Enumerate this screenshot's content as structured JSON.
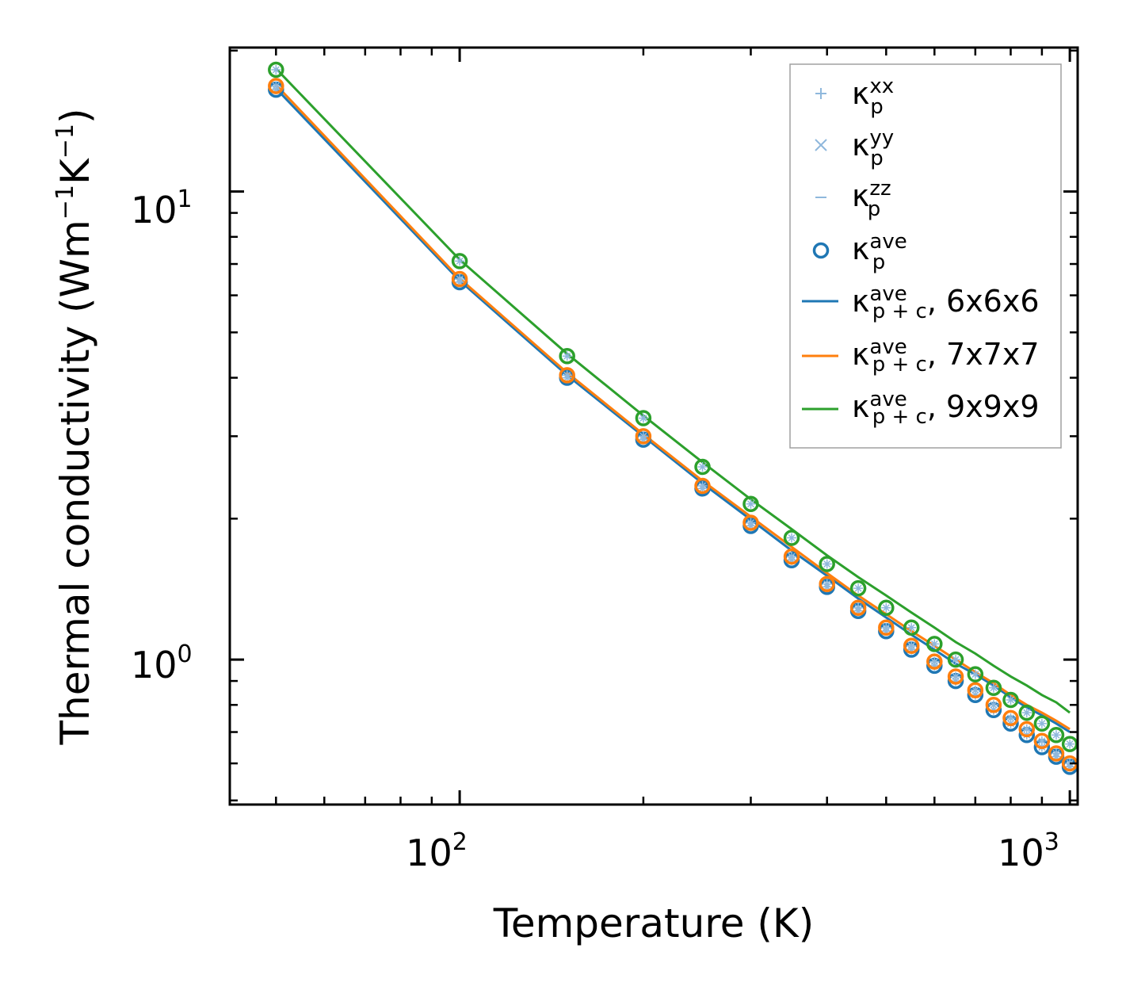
{
  "chart_data": {
    "type": "line",
    "title": "",
    "xlabel": "Temperature (K)",
    "ylabel": "Thermal conductivity (Wm",
    "ylabel_sup1": "−1",
    "ylabel_mid": "K",
    "ylabel_sup2": "−1",
    "ylabel_end": ")",
    "xscale": "log",
    "yscale": "log",
    "xlim": [
      42,
      1030
    ],
    "ylim": [
      0.49,
      20.3
    ],
    "x_ticks": [
      {
        "base": "10",
        "exp": "2",
        "value": 100
      },
      {
        "base": "10",
        "exp": "3",
        "value": 1000
      }
    ],
    "y_ticks": [
      {
        "base": "10",
        "exp": "0",
        "value": 1
      },
      {
        "base": "10",
        "exp": "1",
        "value": 10
      }
    ],
    "legend_position": "upper right",
    "legend": [
      {
        "id": "kxx",
        "sym": "κ",
        "sup": "xx",
        "sub": "p",
        "suffix": "",
        "marker": "plus",
        "color": "#8fb8dc"
      },
      {
        "id": "kyy",
        "sym": "κ",
        "sup": "yy",
        "sub": "p",
        "suffix": "",
        "marker": "x",
        "color": "#8fb8dc"
      },
      {
        "id": "kzz",
        "sym": "κ",
        "sup": "zz",
        "sub": "p",
        "suffix": "",
        "marker": "dash",
        "color": "#8fb8dc"
      },
      {
        "id": "kave",
        "sym": "κ",
        "sup": "ave",
        "sub": "p",
        "suffix": "",
        "marker": "circle",
        "color": "#1f77b4"
      },
      {
        "id": "l6",
        "sym": "κ",
        "sup": "ave",
        "sub": "p + c",
        "suffix": ", 6x6x6",
        "marker": "line",
        "color": "#1f77b4"
      },
      {
        "id": "l7",
        "sym": "κ",
        "sup": "ave",
        "sub": "p + c",
        "suffix": ", 7x7x7",
        "marker": "line",
        "color": "#ff7f0e"
      },
      {
        "id": "l9",
        "sym": "κ",
        "sup": "ave",
        "sub": "p + c",
        "suffix": ", 9x9x9",
        "marker": "line",
        "color": "#2ca02c"
      }
    ],
    "x": [
      50,
      100,
      150,
      200,
      250,
      300,
      350,
      400,
      450,
      500,
      550,
      600,
      650,
      700,
      750,
      800,
      850,
      900,
      950,
      1000
    ],
    "series": [
      {
        "name": "6x6x6",
        "color": "#1f77b4",
        "points": [
          16.5,
          6.4,
          4.0,
          2.95,
          2.32,
          1.93,
          1.63,
          1.43,
          1.27,
          1.15,
          1.05,
          0.97,
          0.9,
          0.84,
          0.78,
          0.73,
          0.69,
          0.65,
          0.62,
          0.59
        ],
        "line": [
          16.6,
          6.45,
          4.05,
          3.0,
          2.38,
          1.99,
          1.71,
          1.51,
          1.35,
          1.23,
          1.13,
          1.05,
          0.98,
          0.93,
          0.88,
          0.83,
          0.79,
          0.76,
          0.73,
          0.7
        ]
      },
      {
        "name": "7x7x7",
        "color": "#ff7f0e",
        "points": [
          16.8,
          6.5,
          4.05,
          3.0,
          2.35,
          1.96,
          1.66,
          1.45,
          1.29,
          1.17,
          1.07,
          0.99,
          0.92,
          0.86,
          0.8,
          0.75,
          0.71,
          0.67,
          0.63,
          0.6
        ],
        "line": [
          16.9,
          6.52,
          4.1,
          3.03,
          2.41,
          2.02,
          1.74,
          1.53,
          1.37,
          1.25,
          1.15,
          1.07,
          1.0,
          0.94,
          0.89,
          0.84,
          0.8,
          0.77,
          0.74,
          0.71
        ]
      },
      {
        "name": "9x9x9",
        "color": "#2ca02c",
        "points": [
          18.2,
          7.1,
          4.45,
          3.28,
          2.58,
          2.15,
          1.82,
          1.6,
          1.42,
          1.29,
          1.17,
          1.08,
          1.0,
          0.93,
          0.87,
          0.82,
          0.77,
          0.73,
          0.69,
          0.66
        ],
        "line": [
          18.3,
          7.15,
          4.5,
          3.32,
          2.64,
          2.2,
          1.9,
          1.67,
          1.5,
          1.37,
          1.26,
          1.17,
          1.09,
          1.03,
          0.97,
          0.92,
          0.88,
          0.84,
          0.81,
          0.77
        ]
      }
    ]
  }
}
